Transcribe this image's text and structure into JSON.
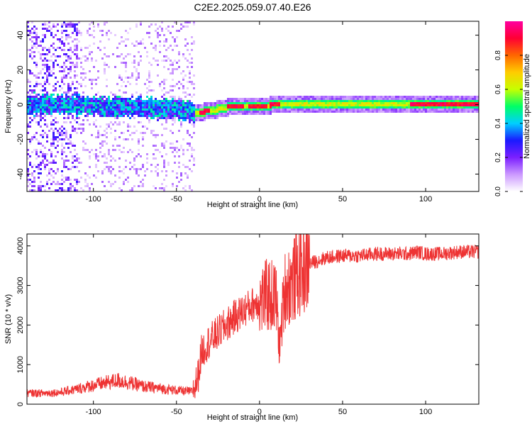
{
  "title": "C2E2.2025.059.07.40.E26",
  "chart_data": [
    {
      "type": "heatmap",
      "xlabel": "Height of straight line (km)",
      "ylabel": "Frequency (Hz)",
      "xlim": [
        -140,
        132
      ],
      "ylim": [
        -50,
        48
      ],
      "xticks": [
        -100,
        -50,
        0,
        50,
        100
      ],
      "yticks": [
        -40,
        -20,
        0,
        20,
        40
      ],
      "colorbar": {
        "label": "Normalized spectral amplitude",
        "range": [
          0,
          1
        ],
        "ticks": [
          "0.0",
          "0.2",
          "0.4",
          "0.6",
          "0.8"
        ],
        "colors": [
          "#ffffff",
          "#cc99ff",
          "#7b1fff",
          "#1a1aff",
          "#00cfff",
          "#00ff66",
          "#c6ff00",
          "#ffcc00",
          "#ff6600",
          "#ff0033",
          "#ff00a0"
        ]
      },
      "description_points": {
        "centerline_hz": [
          [
            -140,
            1
          ],
          [
            -100,
            0
          ],
          [
            -50,
            -2
          ],
          [
            -38,
            -4
          ],
          [
            -30,
            -3
          ],
          [
            -20,
            -1
          ],
          [
            -15,
            0
          ],
          [
            0,
            0
          ],
          [
            5,
            0
          ],
          [
            10,
            1
          ],
          [
            20,
            1
          ],
          [
            50,
            0.5
          ],
          [
            100,
            0.5
          ],
          [
            132,
            0.5
          ]
        ],
        "noise_region_km": [
          -140,
          -40
        ],
        "high_amplitude_segments_km": [
          [
            -37,
            -30
          ],
          [
            -20,
            -10
          ],
          [
            -8,
            4
          ],
          [
            5,
            12
          ],
          [
            90,
            132
          ]
        ]
      }
    },
    {
      "type": "line",
      "xlabel": "Height of straight line (km)",
      "ylabel": "SNR (10 * v/v)",
      "xlim": [
        -140,
        132
      ],
      "ylim": [
        0,
        4300
      ],
      "xticks": [
        -100,
        -50,
        0,
        50,
        100
      ],
      "yticks": [
        0,
        1000,
        2000,
        3000,
        4000
      ],
      "color": "#ee3333",
      "series": [
        {
          "x": [
            -140,
            -130,
            -120,
            -110,
            -100,
            -90,
            -85,
            -80,
            -70,
            -60,
            -50,
            -45,
            -40,
            -37,
            -35,
            -32,
            -30,
            -25,
            -20,
            -15,
            -10,
            -5,
            0,
            5,
            10,
            12,
            15,
            20,
            25,
            30,
            40,
            50,
            60,
            70,
            80,
            90,
            95,
            100,
            110,
            120,
            132
          ],
          "y": [
            280,
            280,
            300,
            380,
            480,
            560,
            600,
            560,
            450,
            400,
            350,
            330,
            320,
            700,
            1300,
            1500,
            1600,
            1800,
            2000,
            2200,
            2350,
            2500,
            2600,
            2750,
            2700,
            1400,
            2900,
            3100,
            3400,
            3550,
            3700,
            3750,
            3750,
            3800,
            3800,
            3800,
            3850,
            3800,
            3800,
            3850,
            3850
          ]
        }
      ]
    }
  ]
}
